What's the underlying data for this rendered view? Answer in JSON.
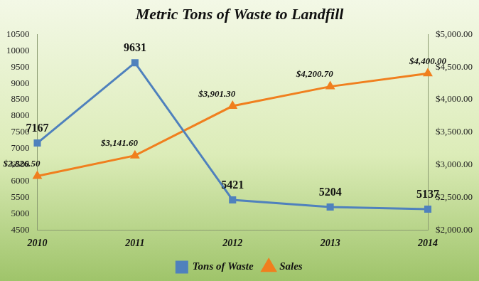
{
  "chart_data": {
    "type": "line",
    "title": "Metric Tons of Waste to Landfill",
    "categories": [
      "2010",
      "2011",
      "2012",
      "2013",
      "2014"
    ],
    "series": [
      {
        "name": "Tons of Waste",
        "color": "#4f81bd",
        "marker": "square",
        "line_style": "solid",
        "values": [
          7167,
          9631,
          5421,
          5204,
          5137
        ]
      },
      {
        "name": "Sales",
        "color": "#f07f1e",
        "marker": "triangle",
        "line_style": "solid",
        "axis": "y2",
        "values": [
          2826.5,
          3141.6,
          3901.3,
          4200.7,
          4400.0
        ],
        "value_labels": [
          "$2,826.50",
          "$3,141.60",
          "$3,901.30",
          "$4,200.70",
          "$4,400.00"
        ]
      }
    ],
    "ylim": [
      4500,
      10500
    ],
    "yticks": [
      4500,
      5000,
      5500,
      6000,
      6500,
      7000,
      7500,
      8000,
      8500,
      9000,
      9500,
      10000,
      10500
    ],
    "y2lim": [
      2000,
      5000
    ],
    "y2ticks": [
      {
        "value": 2000,
        "label": "$2,000.00"
      },
      {
        "value": 2500,
        "label": "$2,500.00"
      },
      {
        "value": 3000,
        "label": "$3,000.00"
      },
      {
        "value": 3500,
        "label": "$3,500.00"
      },
      {
        "value": 4000,
        "label": "$4,000.00"
      },
      {
        "value": 4500,
        "label": "$4,500.00"
      },
      {
        "value": 5000,
        "label": "$5,000.00"
      }
    ],
    "grid": false,
    "legend": "bottom",
    "data_labels": true
  }
}
